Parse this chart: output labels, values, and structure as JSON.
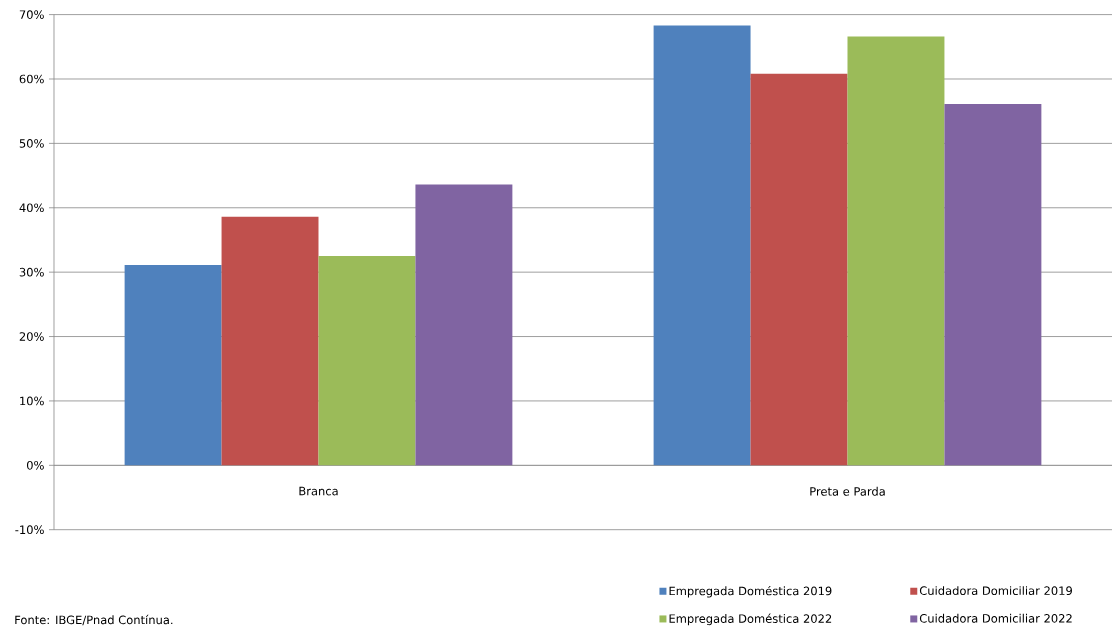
{
  "chart_data": {
    "type": "bar",
    "categories": [
      "Branca",
      "Preta e Parda"
    ],
    "series": [
      {
        "name": "Empregada Doméstica 2019",
        "color": "#4f81bd",
        "values": [
          31.1,
          68.3
        ]
      },
      {
        "name": "Cuidadora Domiciliar 2019",
        "color": "#c0504d",
        "values": [
          38.6,
          60.8
        ]
      },
      {
        "name": "Empregada Doméstica 2022",
        "color": "#9bbb59",
        "values": [
          32.5,
          66.6
        ]
      },
      {
        "name": "Cuidadora Domiciliar 2022",
        "color": "#8064a2",
        "values": [
          43.6,
          56.1
        ]
      }
    ],
    "ylim": [
      -10,
      70
    ],
    "yticks": [
      {
        "value": -10,
        "label": "-10%"
      },
      {
        "value": 0,
        "label": "0%"
      },
      {
        "value": 10,
        "label": "10%"
      },
      {
        "value": 20,
        "label": "20%"
      },
      {
        "value": 30,
        "label": "30%"
      },
      {
        "value": 40,
        "label": "40%"
      },
      {
        "value": 50,
        "label": "50%"
      },
      {
        "value": 60,
        "label": "60%"
      },
      {
        "value": 70,
        "label": "70%"
      }
    ],
    "grid": "y",
    "legend": "bottom right",
    "annotations": [
      "Fonte: IBGE/Pnad Contínua."
    ]
  }
}
